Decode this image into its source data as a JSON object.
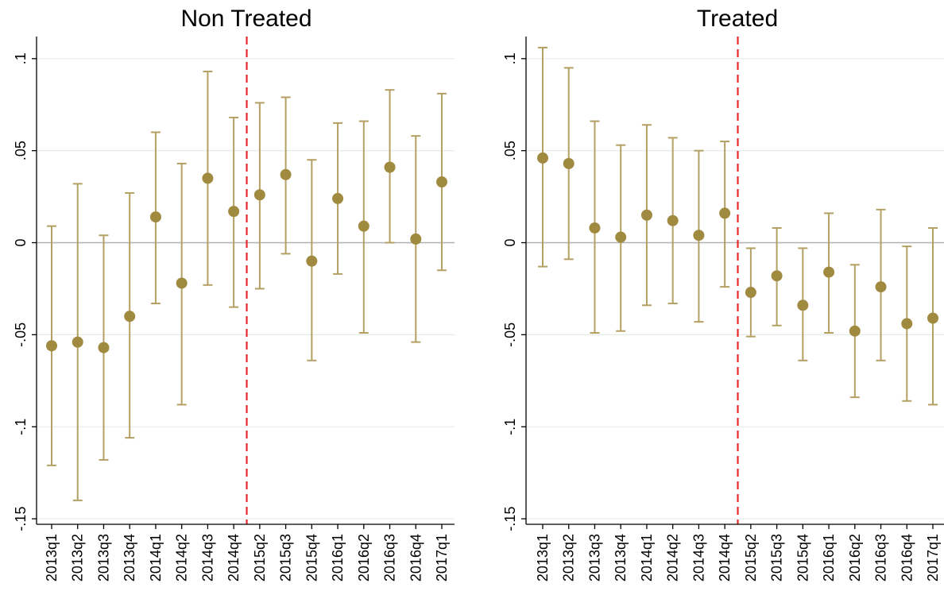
{
  "chart_data": [
    {
      "type": "scatter",
      "title": "Non Treated",
      "categories": [
        "2013q1",
        "2013q2",
        "2013q3",
        "2013q4",
        "2014q1",
        "2014q2",
        "2014q3",
        "2014q4",
        "2015q2",
        "2015q3",
        "2015q4",
        "2016q1",
        "2016q2",
        "2016q3",
        "2016q4",
        "2017q1"
      ],
      "series": [
        {
          "estimate": [
            -0.056,
            -0.054,
            -0.057,
            -0.04,
            0.014,
            -0.022,
            0.035,
            0.017,
            0.026,
            0.037,
            -0.01,
            0.024,
            0.009,
            0.041,
            0.002,
            0.033
          ],
          "ci_low": [
            -0.121,
            -0.14,
            -0.118,
            -0.106,
            -0.033,
            -0.088,
            -0.023,
            -0.035,
            -0.025,
            -0.006,
            -0.064,
            -0.017,
            -0.049,
            0.0,
            -0.054,
            -0.015
          ],
          "ci_high": [
            0.009,
            0.032,
            0.004,
            0.027,
            0.06,
            0.043,
            0.093,
            0.068,
            0.076,
            0.079,
            0.045,
            0.065,
            0.066,
            0.083,
            0.058,
            0.081
          ]
        }
      ],
      "yticks": [
        ".1",
        ".05",
        "0",
        "-.05",
        "-.1",
        "-.15"
      ],
      "ytick_values": [
        0.1,
        0.05,
        0,
        -0.05,
        -0.1,
        -0.15
      ],
      "ylim": [
        -0.153,
        0.112
      ],
      "reference_line": {
        "between": [
          "2014q4",
          "2015q2"
        ],
        "style": "dashed",
        "color": "#e8282c"
      },
      "zero_line": true,
      "grid": true,
      "xlabel": "",
      "ylabel": ""
    },
    {
      "type": "scatter",
      "title": "Treated",
      "categories": [
        "2013q1",
        "2013q2",
        "2013q3",
        "2013q4",
        "2014q1",
        "2014q2",
        "2014q3",
        "2014q4",
        "2015q2",
        "2015q3",
        "2015q4",
        "2016q1",
        "2016q2",
        "2016q3",
        "2016q4",
        "2017q1"
      ],
      "series": [
        {
          "estimate": [
            0.046,
            0.043,
            0.008,
            0.003,
            0.015,
            0.012,
            0.004,
            0.016,
            -0.027,
            -0.018,
            -0.034,
            -0.016,
            -0.048,
            -0.024,
            -0.044,
            -0.041
          ],
          "ci_low": [
            -0.013,
            -0.009,
            -0.049,
            -0.048,
            -0.034,
            -0.033,
            -0.043,
            -0.024,
            -0.051,
            -0.045,
            -0.064,
            -0.049,
            -0.084,
            -0.064,
            -0.086,
            -0.088
          ],
          "ci_high": [
            0.106,
            0.095,
            0.066,
            0.053,
            0.064,
            0.057,
            0.05,
            0.055,
            -0.003,
            0.008,
            -0.003,
            0.016,
            -0.012,
            0.018,
            -0.002,
            0.008
          ]
        }
      ],
      "yticks": [
        ".1",
        ".05",
        "0",
        "-.05",
        "-.1",
        "-.15"
      ],
      "ytick_values": [
        0.1,
        0.05,
        0,
        -0.05,
        -0.1,
        -0.15
      ],
      "ylim": [
        -0.153,
        0.112
      ],
      "reference_line": {
        "between": [
          "2014q4",
          "2015q2"
        ],
        "style": "dashed",
        "color": "#e8282c"
      },
      "zero_line": true,
      "grid": true,
      "xlabel": "",
      "ylabel": ""
    }
  ],
  "colors": {
    "marker": "#a08a40",
    "errorbar": "#b3a062",
    "grid": "#e4ece8",
    "zero_line": "#b0b0b0",
    "reference": "#e8282c"
  }
}
